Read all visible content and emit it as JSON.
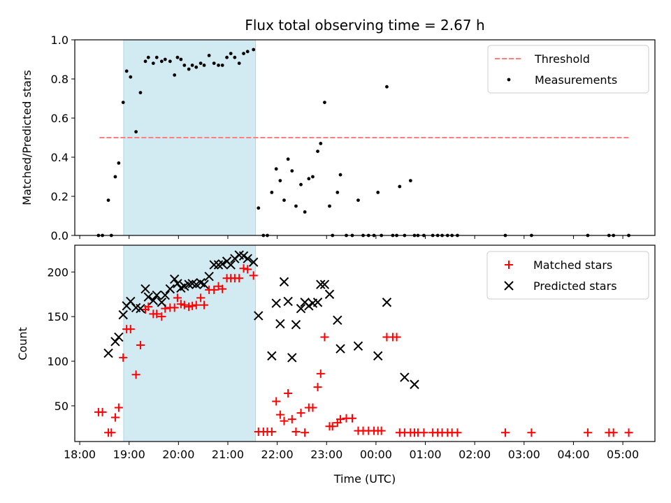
{
  "title": "Flux total observing time = 2.67 h",
  "xlabel": "Time (UTC)",
  "colors": {
    "threshold": "#ff7f7f",
    "matched": "#ff0000",
    "predicted": "#000000",
    "measure": "#000000",
    "span": "#add8e6"
  },
  "chart_data": [
    {
      "type": "scatter",
      "ylabel": "Matched/Predicted stars",
      "xlim": [
        17.9,
        29.65
      ],
      "ylim": [
        0,
        1.0
      ],
      "yticks": [
        0.0,
        0.2,
        0.4,
        0.6,
        0.8,
        1.0
      ],
      "ytick_labels": [
        "0.0",
        "0.2",
        "0.4",
        "0.6",
        "0.8",
        "1.0"
      ],
      "highlight_span": [
        18.89,
        21.56
      ],
      "threshold": {
        "value": 0.5,
        "x_range": [
          18.4,
          29.12
        ]
      },
      "legend": {
        "position": "upper right",
        "entries": [
          "Threshold",
          "Measurements"
        ]
      },
      "series": [
        {
          "name": "Measurements",
          "points": [
            [
              18.38,
              0
            ],
            [
              18.46,
              0
            ],
            [
              18.58,
              0.18
            ],
            [
              18.64,
              0
            ],
            [
              18.72,
              0.3
            ],
            [
              18.79,
              0.37
            ],
            [
              18.88,
              0.68
            ],
            [
              18.95,
              0.84
            ],
            [
              19.03,
              0.81
            ],
            [
              19.14,
              0.53
            ],
            [
              19.23,
              0.73
            ],
            [
              19.33,
              0.89
            ],
            [
              19.39,
              0.91
            ],
            [
              19.49,
              0.88
            ],
            [
              19.56,
              0.91
            ],
            [
              19.66,
              0.89
            ],
            [
              19.73,
              0.9
            ],
            [
              19.83,
              0.89
            ],
            [
              19.92,
              0.82
            ],
            [
              19.98,
              0.91
            ],
            [
              20.05,
              0.9
            ],
            [
              20.12,
              0.87
            ],
            [
              20.21,
              0.85
            ],
            [
              20.28,
              0.87
            ],
            [
              20.36,
              0.86
            ],
            [
              20.45,
              0.88
            ],
            [
              20.52,
              0.87
            ],
            [
              20.62,
              0.92
            ],
            [
              20.72,
              0.88
            ],
            [
              20.81,
              0.87
            ],
            [
              20.89,
              0.87
            ],
            [
              20.98,
              0.91
            ],
            [
              21.06,
              0.93
            ],
            [
              21.14,
              0.91
            ],
            [
              21.23,
              0.88
            ],
            [
              21.32,
              0.93
            ],
            [
              21.4,
              0.94
            ],
            [
              21.52,
              0.95
            ],
            [
              21.62,
              0.14
            ],
            [
              21.72,
              0
            ],
            [
              21.8,
              0
            ],
            [
              21.89,
              0.22
            ],
            [
              21.98,
              0.34
            ],
            [
              22.06,
              0.28
            ],
            [
              22.14,
              0.18
            ],
            [
              22.22,
              0.39
            ],
            [
              22.3,
              0.33
            ],
            [
              22.38,
              0.15
            ],
            [
              22.48,
              0.26
            ],
            [
              22.56,
              0.12
            ],
            [
              22.64,
              0.29
            ],
            [
              22.72,
              0.3
            ],
            [
              22.82,
              0.43
            ],
            [
              22.88,
              0.47
            ],
            [
              22.96,
              0.68
            ],
            [
              23.06,
              0.15
            ],
            [
              23.12,
              0
            ],
            [
              23.22,
              0.22
            ],
            [
              23.28,
              0.31
            ],
            [
              23.4,
              0
            ],
            [
              23.52,
              0
            ],
            [
              23.64,
              0.18
            ],
            [
              23.74,
              0
            ],
            [
              23.85,
              0
            ],
            [
              23.96,
              0
            ],
            [
              24.04,
              0.22
            ],
            [
              24.11,
              0
            ],
            [
              24.22,
              0.76
            ],
            [
              24.34,
              0
            ],
            [
              24.42,
              0
            ],
            [
              24.48,
              0.25
            ],
            [
              24.58,
              0
            ],
            [
              24.7,
              0.28
            ],
            [
              24.78,
              0
            ],
            [
              24.85,
              0
            ],
            [
              24.97,
              0
            ],
            [
              25.15,
              0
            ],
            [
              25.25,
              0
            ],
            [
              25.34,
              0
            ],
            [
              25.45,
              0
            ],
            [
              25.54,
              0
            ],
            [
              25.65,
              0
            ],
            [
              26.62,
              0
            ],
            [
              27.15,
              0
            ],
            [
              28.29,
              0
            ],
            [
              28.72,
              0
            ],
            [
              28.81,
              0
            ],
            [
              29.12,
              0
            ]
          ]
        }
      ]
    },
    {
      "type": "scatter",
      "ylabel": "Count",
      "xlim": [
        17.9,
        29.65
      ],
      "ylim": [
        10,
        230
      ],
      "yticks": [
        50,
        100,
        150,
        200
      ],
      "ytick_labels": [
        "50",
        "100",
        "150",
        "200"
      ],
      "xticks": [
        18,
        19,
        20,
        21,
        22,
        23,
        24,
        25,
        26,
        27,
        28,
        29
      ],
      "xtick_labels": [
        "18:00",
        "19:00",
        "20:00",
        "21:00",
        "22:00",
        "23:00",
        "00:00",
        "01:00",
        "02:00",
        "03:00",
        "04:00",
        "05:00"
      ],
      "highlight_span": [
        18.89,
        21.56
      ],
      "legend": {
        "position": "upper right",
        "entries": [
          "Matched stars",
          "Predicted stars"
        ]
      },
      "series": [
        {
          "name": "Matched stars",
          "points": [
            [
              18.38,
              43
            ],
            [
              18.46,
              43
            ],
            [
              18.58,
              20
            ],
            [
              18.64,
              20
            ],
            [
              18.72,
              37
            ],
            [
              18.79,
              48
            ],
            [
              18.88,
              104
            ],
            [
              18.95,
              136
            ],
            [
              19.03,
              136
            ],
            [
              19.14,
              85
            ],
            [
              19.23,
              118
            ],
            [
              19.33,
              158
            ],
            [
              19.39,
              161
            ],
            [
              19.49,
              153
            ],
            [
              19.56,
              153
            ],
            [
              19.66,
              150
            ],
            [
              19.73,
              159
            ],
            [
              19.83,
              160
            ],
            [
              19.92,
              160
            ],
            [
              19.98,
              171
            ],
            [
              20.05,
              164
            ],
            [
              20.12,
              163
            ],
            [
              20.21,
              161
            ],
            [
              20.28,
              162
            ],
            [
              20.36,
              163
            ],
            [
              20.45,
              171
            ],
            [
              20.52,
              163
            ],
            [
              20.62,
              180
            ],
            [
              20.72,
              180
            ],
            [
              20.81,
              184
            ],
            [
              20.89,
              181
            ],
            [
              20.98,
              193
            ],
            [
              21.06,
              193
            ],
            [
              21.14,
              193
            ],
            [
              21.23,
              193
            ],
            [
              21.32,
              204
            ],
            [
              21.4,
              203
            ],
            [
              21.52,
              196
            ],
            [
              21.62,
              21
            ],
            [
              21.72,
              21
            ],
            [
              21.8,
              21
            ],
            [
              21.89,
              21
            ],
            [
              21.98,
              55
            ],
            [
              22.06,
              40
            ],
            [
              22.14,
              33
            ],
            [
              22.22,
              64
            ],
            [
              22.3,
              35
            ],
            [
              22.38,
              21
            ],
            [
              22.48,
              42
            ],
            [
              22.56,
              20
            ],
            [
              22.64,
              48
            ],
            [
              22.72,
              48
            ],
            [
              22.82,
              71
            ],
            [
              22.88,
              86
            ],
            [
              22.96,
              127
            ],
            [
              23.06,
              27
            ],
            [
              23.12,
              27
            ],
            [
              23.22,
              31
            ],
            [
              23.28,
              35
            ],
            [
              23.4,
              36
            ],
            [
              23.52,
              36
            ],
            [
              23.64,
              22
            ],
            [
              23.74,
              22
            ],
            [
              23.85,
              22
            ],
            [
              23.96,
              22
            ],
            [
              24.04,
              22
            ],
            [
              24.11,
              22
            ],
            [
              24.22,
              127
            ],
            [
              24.34,
              127
            ],
            [
              24.42,
              127
            ],
            [
              24.48,
              20
            ],
            [
              24.58,
              20
            ],
            [
              24.7,
              20
            ],
            [
              24.78,
              20
            ],
            [
              24.85,
              20
            ],
            [
              24.97,
              20
            ],
            [
              25.15,
              20
            ],
            [
              25.25,
              20
            ],
            [
              25.34,
              20
            ],
            [
              25.45,
              20
            ],
            [
              25.54,
              20
            ],
            [
              25.65,
              20
            ],
            [
              26.62,
              20
            ],
            [
              27.15,
              20
            ],
            [
              28.29,
              20
            ],
            [
              28.72,
              20
            ],
            [
              28.81,
              20
            ],
            [
              29.12,
              20
            ]
          ]
        },
        {
          "name": "Predicted stars",
          "points": [
            [
              18.58,
              109
            ],
            [
              18.72,
              122
            ],
            [
              18.79,
              127
            ],
            [
              18.88,
              152
            ],
            [
              18.95,
              162
            ],
            [
              19.03,
              167
            ],
            [
              19.14,
              160
            ],
            [
              19.23,
              159
            ],
            [
              19.33,
              181
            ],
            [
              19.39,
              172
            ],
            [
              19.49,
              168
            ],
            [
              19.56,
              174
            ],
            [
              19.66,
              166
            ],
            [
              19.73,
              174
            ],
            [
              19.83,
              181
            ],
            [
              19.92,
              192
            ],
            [
              19.98,
              187
            ],
            [
              20.05,
              182
            ],
            [
              20.12,
              184
            ],
            [
              20.21,
              186
            ],
            [
              20.28,
              187
            ],
            [
              20.36,
              186
            ],
            [
              20.45,
              188
            ],
            [
              20.52,
              186
            ],
            [
              20.62,
              195
            ],
            [
              20.72,
              208
            ],
            [
              20.81,
              208
            ],
            [
              20.89,
              209
            ],
            [
              20.98,
              212
            ],
            [
              21.06,
              208
            ],
            [
              21.14,
              215
            ],
            [
              21.23,
              219
            ],
            [
              21.32,
              218
            ],
            [
              21.4,
              215
            ],
            [
              21.52,
              211
            ],
            [
              21.62,
              151
            ],
            [
              21.89,
              106
            ],
            [
              21.98,
              165
            ],
            [
              22.06,
              142
            ],
            [
              22.14,
              189
            ],
            [
              22.22,
              167
            ],
            [
              22.3,
              104
            ],
            [
              22.38,
              141
            ],
            [
              22.48,
              159
            ],
            [
              22.56,
              166
            ],
            [
              22.64,
              162
            ],
            [
              22.72,
              165
            ],
            [
              22.82,
              166
            ],
            [
              22.88,
              186
            ],
            [
              22.96,
              186
            ],
            [
              23.06,
              175
            ],
            [
              23.22,
              146
            ],
            [
              23.28,
              114
            ],
            [
              23.64,
              117
            ],
            [
              24.04,
              106
            ],
            [
              24.22,
              166
            ],
            [
              24.58,
              82
            ],
            [
              24.78,
              74
            ]
          ]
        }
      ]
    }
  ]
}
